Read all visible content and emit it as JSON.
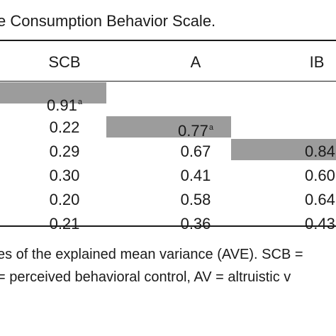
{
  "caption": "e Consumption Behavior Scale.",
  "table": {
    "headers": [
      "SCB",
      "A",
      "IB"
    ],
    "rows": [
      {
        "scb": "0.91",
        "scb_sup": "a",
        "a": "",
        "a_sup": "",
        "ib": "",
        "ib_sup": ""
      },
      {
        "scb": "0.22",
        "scb_sup": "",
        "a": "0.77",
        "a_sup": "a",
        "ib": "",
        "ib_sup": ""
      },
      {
        "scb": "0.29",
        "scb_sup": "",
        "a": "0.67",
        "a_sup": "",
        "ib": "0.84",
        "ib_sup": ""
      },
      {
        "scb": "0.30",
        "scb_sup": "",
        "a": "0.41",
        "a_sup": "",
        "ib": "0.60",
        "ib_sup": ""
      },
      {
        "scb": "0.20",
        "scb_sup": "",
        "a": "0.58",
        "a_sup": "",
        "ib": "0.64",
        "ib_sup": ""
      },
      {
        "scb": "0.21",
        "scb_sup": "",
        "a": "0.36",
        "a_sup": "",
        "ib": "0.43",
        "ib_sup": ""
      }
    ]
  },
  "notes": {
    "line1": "es of the explained mean variance (AVE). SCB =",
    "line2": "= perceived behavioral control, AV = altruistic v"
  },
  "colors": {
    "shade": "#9c9c9c",
    "text": "#1a1a1a"
  }
}
